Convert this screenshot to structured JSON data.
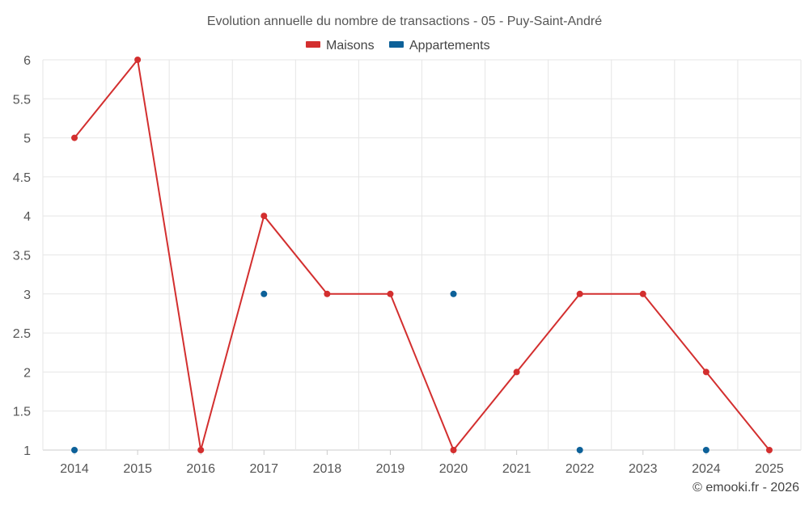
{
  "chart_data": {
    "type": "line",
    "title": "Evolution annuelle du nombre de transactions - 05 - Puy-Saint-André",
    "categories": [
      "2014",
      "2015",
      "2016",
      "2017",
      "2018",
      "2019",
      "2020",
      "2021",
      "2022",
      "2023",
      "2024",
      "2025"
    ],
    "yticks": [
      "1",
      "1.5",
      "2",
      "2.5",
      "3",
      "3.5",
      "4",
      "4.5",
      "5",
      "5.5",
      "6"
    ],
    "ylim": [
      1,
      6
    ],
    "series": [
      {
        "name": "Maisons",
        "color": "#d32f2f",
        "values": [
          5,
          6,
          1,
          4,
          3,
          3,
          1,
          2,
          3,
          3,
          2,
          1
        ],
        "line": true
      },
      {
        "name": "Appartements",
        "color": "#0d6199",
        "values": [
          1,
          null,
          null,
          3,
          null,
          null,
          3,
          null,
          1,
          null,
          1,
          null
        ],
        "line": false
      }
    ],
    "grid": true,
    "legend": "top-center"
  },
  "credit": "© emooki.fr - 2026"
}
